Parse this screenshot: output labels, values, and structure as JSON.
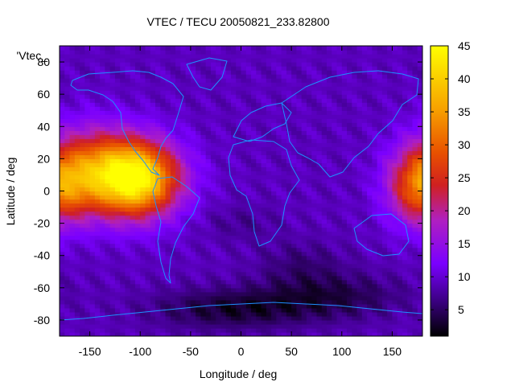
{
  "chart_data": {
    "type": "heatmap",
    "title": "VTEC / TECU 20050821_233.82800",
    "xlabel": "Longitude / deg",
    "ylabel": "Latitude / deg",
    "xlim": [
      -180,
      180
    ],
    "ylim": [
      -90,
      90
    ],
    "x_ticks": [
      -150,
      -100,
      -50,
      0,
      50,
      100,
      150
    ],
    "y_ticks": [
      -80,
      -60,
      -40,
      -20,
      0,
      20,
      40,
      60,
      80
    ],
    "colorbar": {
      "min": 1,
      "max": 45,
      "ticks": [
        5,
        10,
        15,
        20,
        25,
        30,
        35,
        40,
        45
      ],
      "palette": "gnuplot black-purple-blue-red-orange-yellow",
      "colors": [
        "#000000",
        "#3a0080",
        "#7a00ff",
        "#b020c0",
        "#d02020",
        "#e85000",
        "#f7a000",
        "#ffff00"
      ]
    },
    "legend_entry": "'Vtec_",
    "grid": false,
    "overlay": "coastlines",
    "overlay_color": "#1e90ff",
    "field_features": [
      {
        "name": "equatorial anomaly peak, western hemisphere",
        "lon": -105,
        "lat": 8,
        "value": 45
      },
      {
        "name": "equatorial anomaly crest, western hemisphere",
        "lon": -120,
        "lat": 20,
        "value": 32
      },
      {
        "name": "equatorial anomaly, far east (date line)",
        "lon": 175,
        "lat": 5,
        "value": 28
      },
      {
        "name": "Antarctic minimum",
        "lon": -10,
        "lat": -73,
        "value": 1
      },
      {
        "name": "southern Atlantic/Indian minimum",
        "lon": 90,
        "lat": -65,
        "value": 3
      },
      {
        "name": "background mid latitudes",
        "lon": 40,
        "lat": 30,
        "value": 9
      }
    ]
  }
}
